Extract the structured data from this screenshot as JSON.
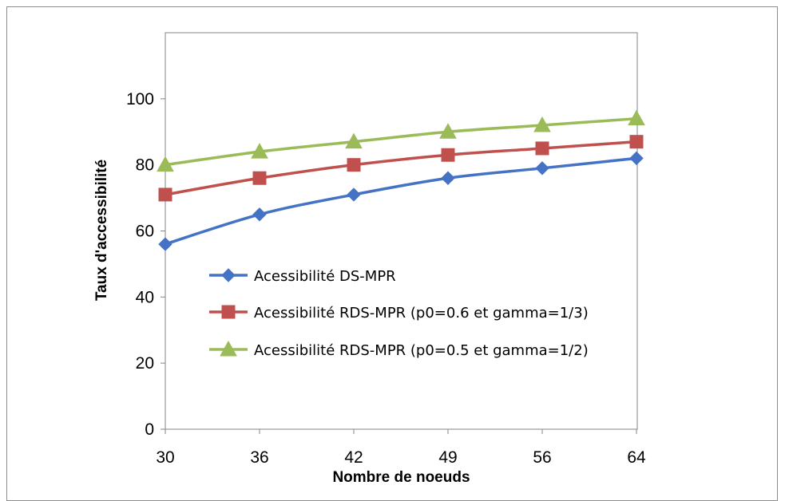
{
  "chart_data": {
    "type": "line",
    "categories": [
      "30",
      "36",
      "42",
      "49",
      "56",
      "64"
    ],
    "series": [
      {
        "name": "Acessibilité DS-MPR",
        "values": [
          56,
          65,
          71,
          76,
          79,
          82
        ],
        "color": "#4472c4",
        "marker": "diamond"
      },
      {
        "name": "Acessibilité RDS-MPR (p0=0.6 et gamma=1/3)",
        "values": [
          71,
          76,
          80,
          83,
          85,
          87
        ],
        "color": "#c0504d",
        "marker": "square"
      },
      {
        "name": "Acessibilité RDS-MPR (p0=0.5 et gamma=1/2)",
        "values": [
          80,
          84,
          87,
          90,
          92,
          94
        ],
        "color": "#9bbb59",
        "marker": "triangle"
      }
    ],
    "xlabel": "Nombre de noeuds",
    "ylabel": "Taux d'accessibilité",
    "ylim": [
      0,
      120
    ],
    "yticks": [
      0,
      20,
      40,
      60,
      80,
      100
    ],
    "grid": false,
    "legend_position": "center-left"
  }
}
